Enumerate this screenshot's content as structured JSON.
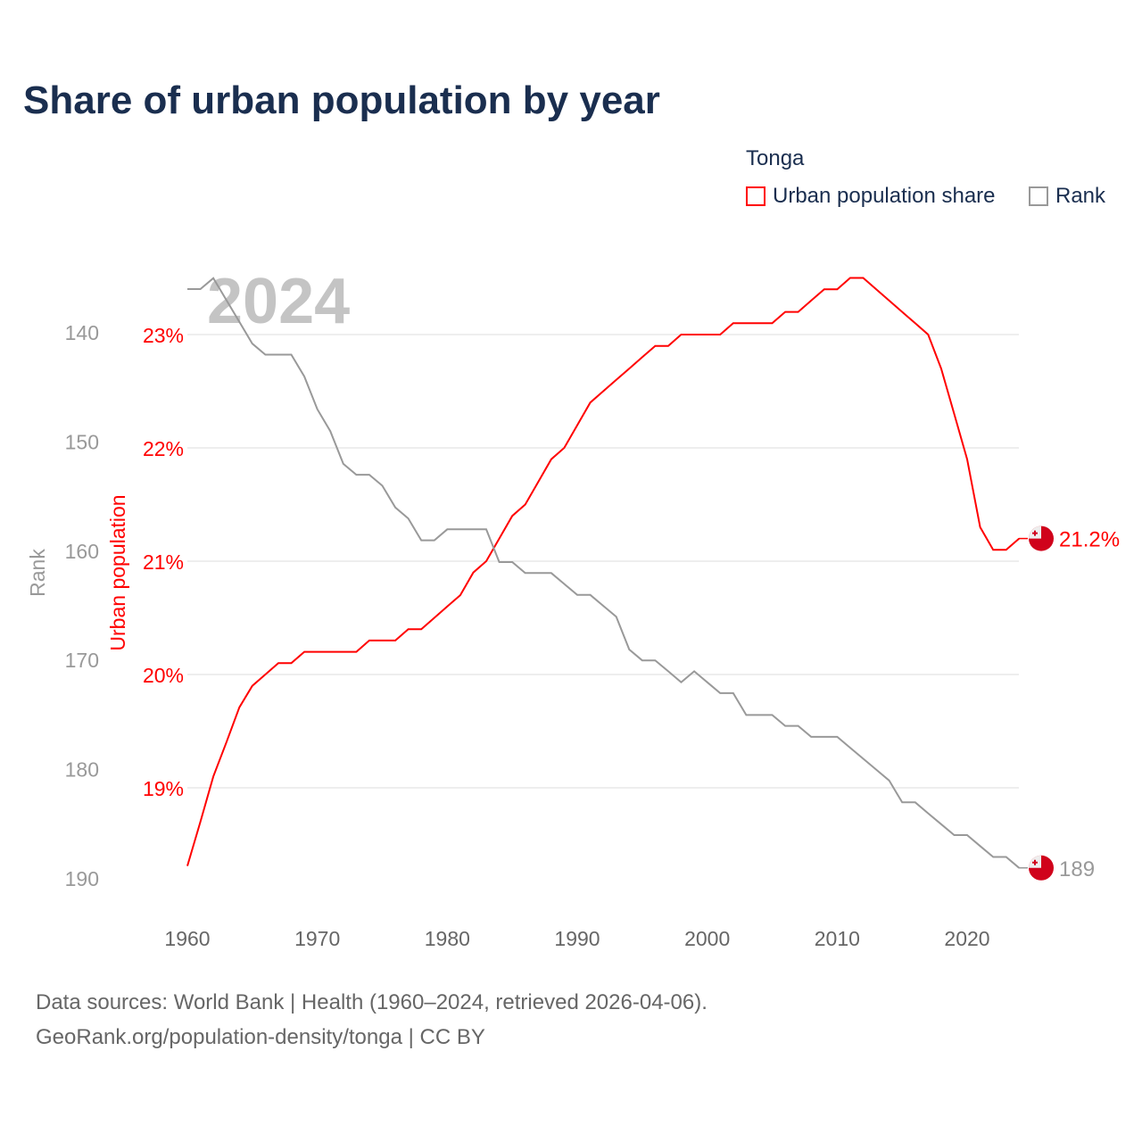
{
  "title": "Share of urban population by year",
  "legend": {
    "title": "Tonga",
    "items": [
      {
        "label": "Urban population share",
        "color": "#ff0000"
      },
      {
        "label": "Rank",
        "color": "#999999"
      }
    ]
  },
  "sources": [
    "Data sources: World Bank | Health (1960–2024, retrieved 2026-04-06).",
    "GeoRank.org/population-density/tonga | CC BY"
  ],
  "chart_data": {
    "type": "line",
    "title": "Share of urban population by year",
    "year_label": "2024",
    "x": [
      1960,
      1961,
      1962,
      1963,
      1964,
      1965,
      1966,
      1967,
      1968,
      1969,
      1970,
      1971,
      1972,
      1973,
      1974,
      1975,
      1976,
      1977,
      1978,
      1979,
      1980,
      1981,
      1982,
      1983,
      1984,
      1985,
      1986,
      1987,
      1988,
      1989,
      1990,
      1991,
      1992,
      1993,
      1994,
      1995,
      1996,
      1997,
      1998,
      1999,
      2000,
      2001,
      2002,
      2003,
      2004,
      2005,
      2006,
      2007,
      2008,
      2009,
      2010,
      2011,
      2012,
      2013,
      2014,
      2015,
      2016,
      2017,
      2018,
      2019,
      2020,
      2021,
      2022,
      2023,
      2024
    ],
    "x_ticks": [
      "1960",
      "1970",
      "1980",
      "1990",
      "2000",
      "2010",
      "2020"
    ],
    "series": [
      {
        "name": "Urban population share",
        "axis": "left-inner",
        "color": "#ff0000",
        "end_label": "21.2%",
        "values": [
          18.31,
          18.7,
          19.1,
          19.4,
          19.71,
          19.9,
          20.0,
          20.1,
          20.1,
          20.2,
          20.2,
          20.2,
          20.2,
          20.2,
          20.3,
          20.3,
          20.3,
          20.4,
          20.4,
          20.5,
          20.6,
          20.7,
          20.9,
          21.0,
          21.2,
          21.4,
          21.5,
          21.7,
          21.9,
          22.0,
          22.2,
          22.4,
          22.5,
          22.6,
          22.7,
          22.8,
          22.9,
          22.9,
          23.0,
          23.0,
          23.0,
          23.0,
          23.1,
          23.1,
          23.1,
          23.1,
          23.2,
          23.2,
          23.3,
          23.4,
          23.4,
          23.5,
          23.5,
          23.4,
          23.3,
          23.2,
          23.1,
          23.0,
          22.7,
          22.3,
          21.9,
          21.3,
          21.1,
          21.1,
          21.2
        ]
      },
      {
        "name": "Rank",
        "axis": "left-outer",
        "color": "#999999",
        "end_label": "189",
        "values": [
          136,
          136,
          135,
          137,
          139,
          141,
          142,
          142,
          142,
          144,
          147,
          149,
          152,
          153,
          153,
          154,
          156,
          157,
          159,
          159,
          158,
          158,
          158,
          158,
          161,
          161,
          162,
          162,
          162,
          163,
          164,
          164,
          165,
          166,
          169,
          170,
          170,
          171,
          172,
          171,
          172,
          173,
          173,
          175,
          175,
          175,
          176,
          176,
          177,
          177,
          177,
          178,
          179,
          180,
          181,
          183,
          183,
          184,
          185,
          186,
          186,
          187,
          188,
          188,
          189
        ]
      }
    ],
    "y_left_inner": {
      "label": "Urban population",
      "ticks": [
        "23%",
        "22%",
        "21%",
        "20%",
        "19%"
      ],
      "tick_values": [
        23,
        22,
        21,
        20,
        19
      ]
    },
    "y_left_outer": {
      "label": "Rank",
      "ticks": [
        "140",
        "150",
        "160",
        "170",
        "180",
        "190"
      ],
      "tick_values": [
        140,
        150,
        160,
        170,
        180,
        190
      ],
      "inverted": true
    },
    "grid": true
  }
}
